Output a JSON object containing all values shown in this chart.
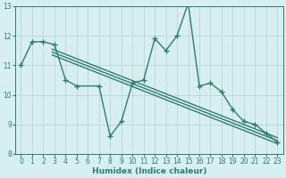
{
  "x_main": [
    0,
    1,
    2,
    3,
    4,
    5,
    7,
    8,
    9,
    10,
    11,
    12,
    13,
    14,
    15,
    16,
    17,
    18,
    19,
    20,
    21,
    22,
    23
  ],
  "y_main": [
    11.0,
    11.8,
    11.8,
    11.7,
    10.5,
    10.3,
    10.3,
    8.6,
    9.1,
    10.4,
    10.5,
    11.9,
    11.5,
    12.0,
    13.1,
    10.3,
    10.4,
    10.1,
    9.5,
    9.1,
    9.0,
    8.7,
    8.4
  ],
  "y_line1_start": 11.55,
  "y_line1_end": 8.55,
  "y_line2_start": 11.45,
  "y_line2_end": 8.45,
  "y_line3_start": 11.35,
  "y_line3_end": 8.35,
  "x_lines_start": 2.8,
  "x_lines_end": 23,
  "color": "#2d7d6e",
  "bg_color": "#d8eff0",
  "grid_color": "#b8d8d8",
  "ylim": [
    8,
    13
  ],
  "xlim": [
    -0.5,
    23.5
  ],
  "xlabel": "Humidex (Indice chaleur)",
  "yticks": [
    8,
    9,
    10,
    11,
    12,
    13
  ],
  "xticks": [
    0,
    1,
    2,
    3,
    4,
    5,
    6,
    7,
    8,
    9,
    10,
    11,
    12,
    13,
    14,
    15,
    16,
    17,
    18,
    19,
    20,
    21,
    22,
    23
  ],
  "marker": "+",
  "markersize": 4,
  "linewidth": 1.0,
  "label_fontsize": 6.5,
  "tick_fontsize": 5.5
}
